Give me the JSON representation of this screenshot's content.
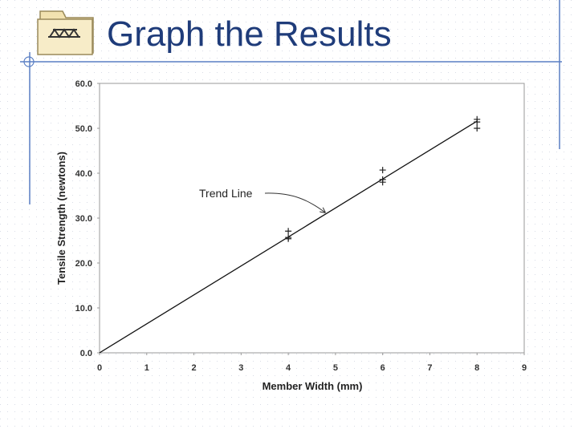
{
  "slide": {
    "title": "Graph the Results"
  },
  "chart_data": {
    "type": "scatter",
    "x_label": "Member Width (mm)",
    "y_label": "Tensile Strength (newtons)",
    "x": [
      4,
      4,
      4,
      6,
      6,
      6,
      8,
      8,
      8
    ],
    "values": [
      27.1,
      25.7,
      25.4,
      40.7,
      38.6,
      38.0,
      52.0,
      51.4,
      50.0
    ],
    "color": "#222222",
    "trend_line": {
      "x": [
        0,
        8
      ],
      "values": [
        0,
        51.6
      ],
      "color": "#111111"
    },
    "annotation": "Trend Line",
    "xlim": [
      0,
      9
    ],
    "xticks": [
      0,
      1,
      2,
      3,
      4,
      5,
      6,
      7,
      8,
      9
    ],
    "ylim": [
      0,
      60
    ],
    "yticks": [
      {
        "value": 0,
        "label": "0.0"
      },
      {
        "value": 10,
        "label": "10.0"
      },
      {
        "value": 20,
        "label": "20.0"
      },
      {
        "value": 30,
        "label": "30.0"
      },
      {
        "value": 40,
        "label": "40.0"
      },
      {
        "value": 50,
        "label": "50.0"
      },
      {
        "value": 60,
        "label": "60.0"
      }
    ],
    "grid": false
  }
}
